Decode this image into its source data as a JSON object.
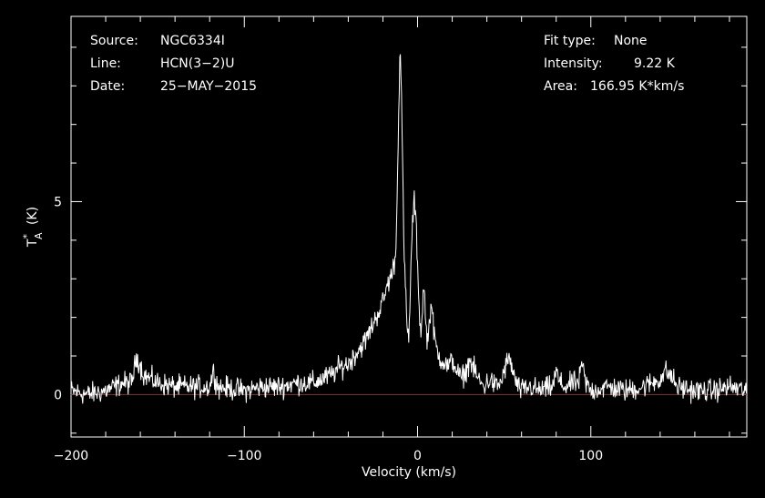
{
  "header": {
    "source_label": "Source:",
    "source_value": "NGC6334I",
    "line_label": "Line:",
    "line_value": "HCN(3−2)U",
    "date_label": "Date:",
    "date_value": "25−MAY−2015",
    "fit_label": "Fit type:",
    "fit_value": "None",
    "intensity_label": "Intensity:",
    "intensity_value": "9.22 K",
    "area_label": "Area:",
    "area_value": "166.95 K*km/s"
  },
  "chart_data": {
    "type": "line",
    "xlabel": "Velocity (km/s)",
    "ylabel": "T",
    "ylabel_sup": "*",
    "ylabel_sub": "A",
    "ylabel_unit": "(K)",
    "xlim": [
      -200,
      190
    ],
    "ylim": [
      -1.1,
      9.8
    ],
    "x_ticks": [
      -200,
      -100,
      0,
      100
    ],
    "x_tick_labels": [
      "−200",
      "−100",
      "0",
      "100"
    ],
    "y_ticks": [
      0,
      5
    ],
    "y_tick_labels": [
      "0",
      "5"
    ],
    "line_color": "#ffffff",
    "baseline_color": "#ff0000",
    "baseline_value": 0,
    "noise_rms": 0.18,
    "series": [
      {
        "x": [
          -200,
          -190,
          -180,
          -170,
          -165,
          -162,
          -158,
          -150,
          -140,
          -130,
          -120,
          -118,
          -115,
          -100,
          -90,
          -80,
          -70,
          -60,
          -55,
          -50,
          -45,
          -40,
          -35,
          -30,
          -25,
          -20,
          -17,
          -15,
          -13,
          -12,
          -11,
          -10,
          -9,
          -8,
          -7,
          -6,
          -5,
          -4,
          -3,
          -2,
          -1,
          0,
          1,
          2,
          3,
          4,
          5,
          6,
          7,
          8,
          9,
          10,
          11,
          12,
          14,
          16,
          18,
          20,
          22,
          25,
          28,
          30,
          32,
          35,
          38,
          42,
          45,
          48,
          50,
          52,
          54,
          56,
          58,
          60,
          65,
          70,
          78,
          80,
          82,
          85,
          90,
          93,
          95,
          97,
          100,
          110,
          120,
          130,
          140,
          143,
          146,
          150,
          160,
          170,
          180,
          190
        ],
        "y": [
          0.1,
          0.0,
          0.1,
          0.3,
          0.3,
          1.0,
          0.5,
          0.3,
          0.2,
          0.2,
          0.2,
          0.6,
          0.2,
          0.1,
          0.2,
          0.2,
          0.3,
          0.3,
          0.4,
          0.5,
          0.7,
          0.8,
          1.1,
          1.4,
          1.9,
          2.4,
          2.9,
          3.1,
          3.5,
          4.5,
          7.2,
          9.2,
          7.0,
          4.0,
          2.8,
          1.6,
          1.5,
          3.0,
          4.4,
          5.0,
          4.6,
          3.4,
          2.2,
          1.5,
          2.5,
          2.7,
          1.6,
          1.4,
          2.0,
          2.4,
          1.8,
          1.4,
          1.2,
          1.0,
          0.9,
          0.8,
          0.7,
          0.9,
          0.7,
          0.4,
          0.6,
          0.9,
          0.7,
          0.4,
          0.2,
          0.4,
          0.2,
          0.3,
          0.6,
          0.9,
          0.8,
          0.4,
          0.2,
          0.1,
          0.2,
          0.1,
          0.2,
          0.6,
          0.3,
          0.2,
          0.3,
          0.3,
          0.8,
          0.3,
          0.1,
          0.2,
          0.1,
          0.2,
          0.4,
          0.6,
          0.5,
          0.2,
          0.1,
          0.1,
          0.2,
          0.1
        ]
      }
    ]
  }
}
